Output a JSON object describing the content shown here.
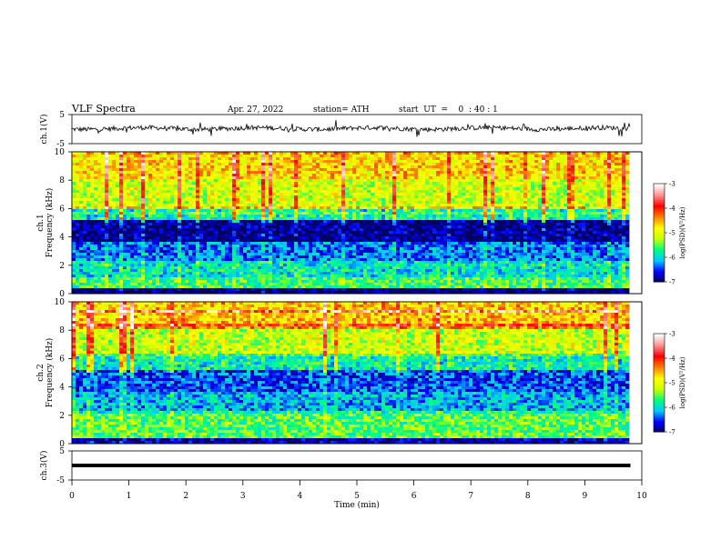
{
  "header": {
    "title": "VLF Spectra",
    "date": "Apr. 27, 2022",
    "station": "station= ATH",
    "start": "start  UT  =    0  : 40 : 1"
  },
  "labels": {
    "xlabel": "Time (min)",
    "ch1_ylabel": "ch.1(V)",
    "ch3_ylabel": "ch.3(V)",
    "spec1_ylabel_a": "ch.1",
    "spec1_ylabel_b": "Frequency (kHz)",
    "spec2_ylabel_a": "ch.2",
    "spec2_ylabel_b": "Frequency (kHz)",
    "colorbar_label": "log(PSD)(V²/Hz)"
  },
  "colors": {
    "colormap": [
      "#000060",
      "#0000ff",
      "#00c8ff",
      "#00ff80",
      "#c8ff00",
      "#ffff00",
      "#ff8000",
      "#ff0000",
      "#ff9090",
      "#ffffff"
    ],
    "trace": "#000000"
  },
  "chart_data": [
    {
      "type": "line",
      "title": "ch.1 waveform",
      "ylabel": "ch.1(V)",
      "xlim": [
        0,
        10
      ],
      "ylim": [
        -5,
        5
      ],
      "yticks": [
        5,
        -5
      ],
      "data_extent_x": [
        0,
        9.8
      ],
      "level": 0.2
    },
    {
      "type": "heatmap",
      "name": "ch.1 spectrogram",
      "ylabel": "Frequency (kHz)",
      "xlim": [
        0,
        10
      ],
      "ylim": [
        0,
        10
      ],
      "yticks": [
        0,
        2,
        4,
        6,
        8,
        10
      ],
      "data_extent_x": [
        0,
        9.8
      ],
      "bands": [
        {
          "from": 0.0,
          "to": 0.3,
          "level": -7.0
        },
        {
          "from": 0.3,
          "to": 1.2,
          "level": -5.6
        },
        {
          "from": 1.2,
          "to": 2.3,
          "level": -5.9
        },
        {
          "from": 2.3,
          "to": 3.6,
          "level": -6.3
        },
        {
          "from": 3.6,
          "to": 5.2,
          "level": -6.9
        },
        {
          "from": 5.2,
          "to": 6.2,
          "level": -5.8
        },
        {
          "from": 6.2,
          "to": 8.0,
          "level": -5.1
        },
        {
          "from": 8.0,
          "to": 10.0,
          "level": -4.7
        }
      ]
    },
    {
      "type": "heatmap",
      "name": "ch.2 spectrogram",
      "ylabel": "Frequency (kHz)",
      "xlim": [
        0,
        10
      ],
      "ylim": [
        0,
        10
      ],
      "yticks": [
        0,
        2,
        4,
        6,
        8,
        10
      ],
      "data_extent_x": [
        0,
        9.8
      ],
      "bands": [
        {
          "from": 0.0,
          "to": 0.3,
          "level": -6.8
        },
        {
          "from": 0.3,
          "to": 2.2,
          "level": -5.5
        },
        {
          "from": 2.2,
          "to": 3.6,
          "level": -6.1
        },
        {
          "from": 3.6,
          "to": 5.2,
          "level": -6.4
        },
        {
          "from": 5.2,
          "to": 6.3,
          "level": -5.8
        },
        {
          "from": 6.3,
          "to": 8.0,
          "level": -5.1
        },
        {
          "from": 8.0,
          "to": 10.0,
          "level": -4.6
        }
      ]
    },
    {
      "type": "line",
      "title": "ch.3 waveform",
      "ylabel": "ch.3(V)",
      "xlim": [
        0,
        10
      ],
      "ylim": [
        -5,
        5
      ],
      "yticks": [
        5,
        -5
      ],
      "data_extent_x": [
        0,
        9.8
      ],
      "level": 0.0
    }
  ],
  "xaxis": {
    "ticks": [
      "0",
      "1",
      "2",
      "3",
      "4",
      "5",
      "6",
      "7",
      "8",
      "9",
      "10"
    ]
  },
  "colorbar": {
    "range": [
      -7,
      -3
    ],
    "ticks": [
      "-3",
      "-4",
      "-5",
      "-6",
      "-7"
    ]
  }
}
